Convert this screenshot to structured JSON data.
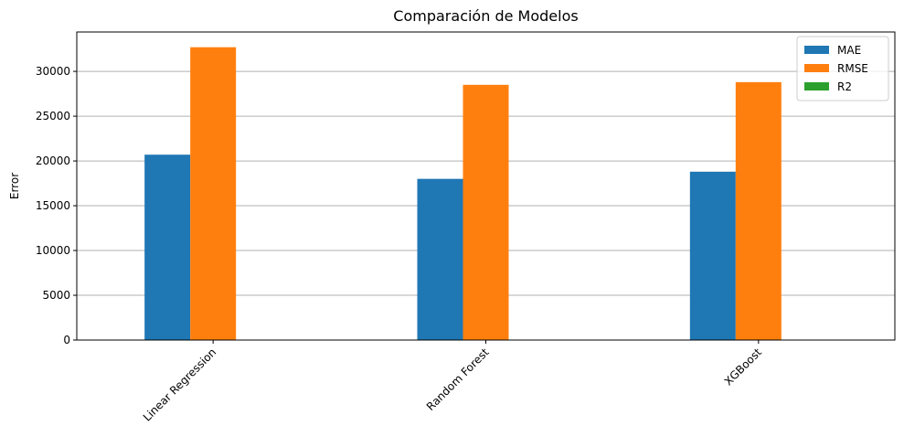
{
  "chart_data": {
    "type": "bar",
    "title": "Comparación de Modelos",
    "xlabel": "",
    "ylabel": "Error",
    "categories": [
      "Linear Regression",
      "Random Forest",
      "XGBoost"
    ],
    "series": [
      {
        "name": "MAE",
        "color": "#1f77b4",
        "values": [
          20700,
          18000,
          18800
        ]
      },
      {
        "name": "RMSE",
        "color": "#ff7f0e",
        "values": [
          32700,
          28500,
          28800
        ]
      },
      {
        "name": "R2",
        "color": "#2ca02c",
        "values": [
          0.65,
          0.75,
          0.74
        ]
      }
    ],
    "ylim": [
      0,
      34400
    ],
    "yticks": [
      0,
      5000,
      10000,
      15000,
      20000,
      25000,
      30000
    ],
    "grid": "y",
    "legend_position": "top-right"
  }
}
